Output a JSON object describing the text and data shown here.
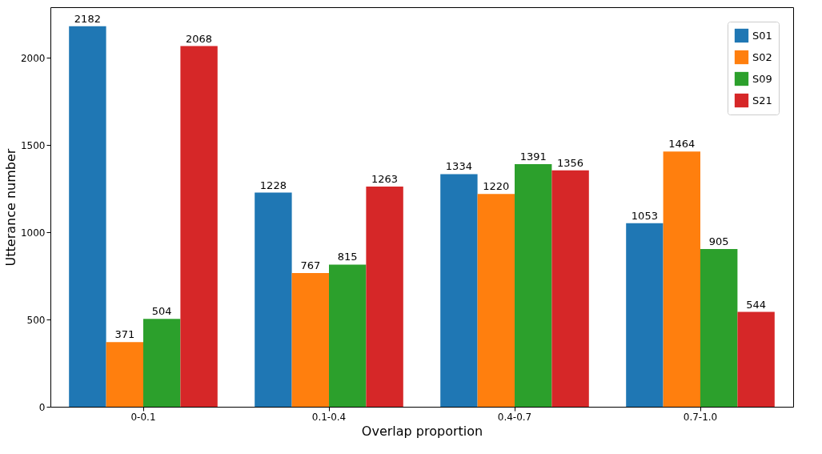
{
  "chart_data": {
    "type": "bar",
    "xlabel": "Overlap proportion",
    "ylabel": "Utterance number",
    "categories": [
      "0-0.1",
      "0.1-0.4",
      "0.4-0.7",
      "0.7-1.0"
    ],
    "series": [
      {
        "name": "S01",
        "color": "#1f77b4",
        "values": [
          2182,
          1228,
          1334,
          1053
        ]
      },
      {
        "name": "S02",
        "color": "#ff7f0e",
        "values": [
          371,
          767,
          1220,
          1464
        ]
      },
      {
        "name": "S09",
        "color": "#2ca02c",
        "values": [
          504,
          815,
          1391,
          905
        ]
      },
      {
        "name": "S21",
        "color": "#d62728",
        "values": [
          2068,
          1263,
          1356,
          544
        ]
      }
    ],
    "ylim": [
      0,
      2291
    ],
    "yticks": [
      0,
      500,
      1000,
      1500,
      2000
    ],
    "grid": false,
    "legend": "top right",
    "data_labels": true
  }
}
